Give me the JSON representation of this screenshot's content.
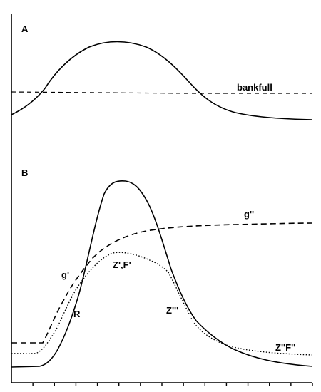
{
  "panels": {
    "a": {
      "label": "A",
      "bankfull_label": "bankfull"
    },
    "b": {
      "label": "B",
      "curve_labels": {
        "g_double_prime": "g''",
        "g_prime": "g'",
        "zf_prime": "Z',F'",
        "r": "R",
        "z_triple_prime": "Z'''",
        "zf_double_prime": "Z''F''"
      }
    }
  },
  "x_axis": {
    "tick_count": 14
  }
}
